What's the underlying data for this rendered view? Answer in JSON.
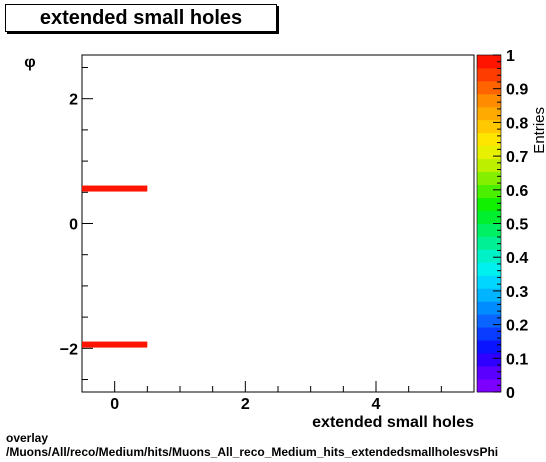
{
  "chart_data": {
    "type": "heatmap",
    "title": "extended small holes",
    "xlabel": "extended small holes",
    "ylabel": "φ",
    "zlabel": "Entries",
    "xlim": [
      -0.5,
      5.5
    ],
    "ylim": [
      -2.7,
      2.7
    ],
    "zlim": [
      0,
      1
    ],
    "x_ticks": [
      0,
      2,
      4
    ],
    "y_ticks": [
      -2,
      0,
      2
    ],
    "z_ticks": [
      0,
      0.1,
      0.2,
      0.3,
      0.4,
      0.5,
      0.6,
      0.7,
      0.8,
      0.9,
      1
    ],
    "cells": [
      {
        "x0": -0.5,
        "x1": 0.5,
        "y": 0.56,
        "value": 1
      },
      {
        "x0": -0.5,
        "x1": 0.5,
        "y": -1.94,
        "value": 1
      }
    ],
    "palette": [
      "#7b00ff",
      "#5a00ff",
      "#2f00ff",
      "#0a14ff",
      "#0a3cff",
      "#0a64ff",
      "#008cff",
      "#00b4ff",
      "#00d6ff",
      "#00f0f0",
      "#00f0c8",
      "#00f096",
      "#00f064",
      "#00f030",
      "#10f000",
      "#4af000",
      "#84f000",
      "#bcf000",
      "#e6f000",
      "#ffe600",
      "#ffc800",
      "#ffaa00",
      "#ff8c00",
      "#ff6400",
      "#ff3c00",
      "#ff1400"
    ]
  },
  "footer": {
    "line1": "overlay",
    "line2": "/Muons/All/reco/Medium/hits/Muons_All_reco_Medium_hits_extendedsmallholesvsPhi"
  }
}
